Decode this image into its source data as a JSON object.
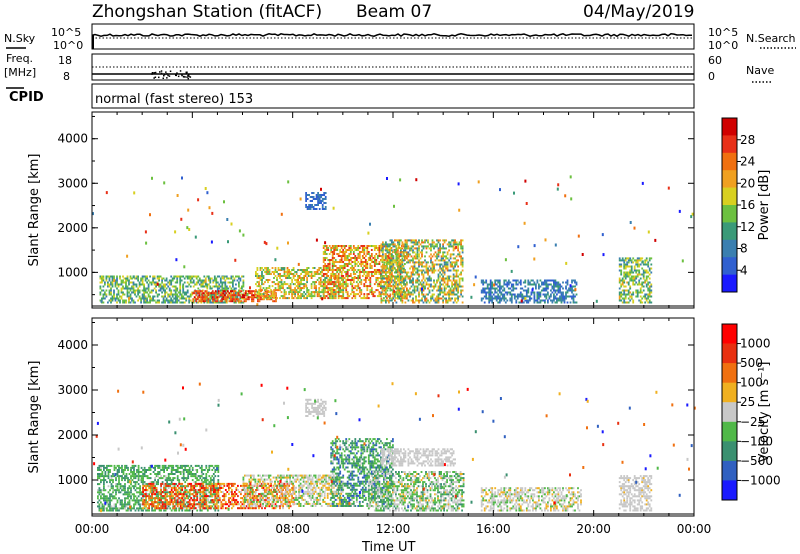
{
  "header": {
    "station": "Zhongshan Station (fitACF)",
    "beam": "Beam 07",
    "date": "04/May/2019"
  },
  "top_panels": {
    "nsky_label": "N.Sky",
    "nsearch_label": "N.Search",
    "nsky_ticks": [
      "10^5",
      "10^0"
    ],
    "freq_label": "Freq.",
    "freq_unit": "[MHz]",
    "freq_ticks": [
      "18",
      "8"
    ],
    "nave_label": "Nave",
    "nave_ticks": [
      "60",
      "0"
    ],
    "cpid_label": "CPID",
    "cpid_text": "normal (fast stereo) 153"
  },
  "chart_data": [
    {
      "type": "heatmap",
      "name": "power",
      "ylabel": "Slant Range [km]",
      "xlabel": "",
      "x_ticks": [
        "00:00",
        "04:00",
        "08:00",
        "12:00",
        "16:00",
        "20:00",
        "00:00"
      ],
      "y_ticks": [
        "1000",
        "2000",
        "3000",
        "4000"
      ],
      "ylim": [
        200,
        4600
      ],
      "xlim_hours": [
        0,
        24
      ],
      "colorbar": {
        "label": "Power [dB]",
        "ticks": [
          "28",
          "24",
          "20",
          "16",
          "12",
          "8",
          "4"
        ],
        "range": [
          0,
          32
        ],
        "colors": [
          "#1a1aff",
          "#3060d0",
          "#3a7fb0",
          "#3a9a78",
          "#6cc040",
          "#d8d020",
          "#f0a020",
          "#f07010",
          "#e83018",
          "#d00000"
        ]
      },
      "regions": [
        {
          "t0": 0.3,
          "t1": 6.0,
          "r0": 300,
          "r1": 900,
          "level": [
            8,
            18
          ]
        },
        {
          "t0": 4.0,
          "t1": 7.3,
          "r0": 330,
          "r1": 600,
          "level": [
            22,
            30
          ]
        },
        {
          "t0": 6.5,
          "t1": 10.0,
          "r0": 400,
          "r1": 1100,
          "level": [
            12,
            24
          ]
        },
        {
          "t0": 8.5,
          "t1": 9.3,
          "r0": 2400,
          "r1": 2800,
          "level": [
            4,
            8
          ]
        },
        {
          "t0": 9.2,
          "t1": 12.5,
          "r0": 400,
          "r1": 1600,
          "level": [
            14,
            28
          ]
        },
        {
          "t0": 11.5,
          "t1": 14.8,
          "r0": 300,
          "r1": 1700,
          "level": [
            8,
            24
          ]
        },
        {
          "t0": 15.5,
          "t1": 19.3,
          "r0": 300,
          "r1": 800,
          "level": [
            4,
            12
          ]
        },
        {
          "t0": 21.0,
          "t1": 22.3,
          "r0": 300,
          "r1": 1300,
          "level": [
            8,
            20
          ]
        }
      ]
    },
    {
      "type": "heatmap",
      "name": "velocity",
      "ylabel": "Slant Range [km]",
      "xlabel": "Time UT",
      "x_ticks": [
        "00:00",
        "04:00",
        "08:00",
        "12:00",
        "16:00",
        "20:00",
        "00:00"
      ],
      "y_ticks": [
        "1000",
        "2000",
        "3000",
        "4000"
      ],
      "ylim": [
        200,
        4600
      ],
      "xlim_hours": [
        0,
        24
      ],
      "colorbar": {
        "label": "Velocity [m s⁻¹]",
        "ticks": [
          "1000",
          "500",
          "100",
          "25",
          "-25",
          "-100",
          "-500",
          "-1000"
        ],
        "range": [
          -1200,
          1200
        ],
        "colors": [
          "#1a1aff",
          "#3060c0",
          "#3a9070",
          "#50b848",
          "#c8c8c8",
          "#f0b020",
          "#f07010",
          "#e83010",
          "#ff0000"
        ]
      },
      "regions": [
        {
          "t0": 0.2,
          "t1": 5.0,
          "r0": 300,
          "r1": 1300,
          "level": [
            -600,
            -100
          ]
        },
        {
          "t0": 2.0,
          "t1": 8.0,
          "r0": 350,
          "r1": 900,
          "level": [
            100,
            1100
          ]
        },
        {
          "t0": 6.0,
          "t1": 10.0,
          "r0": 400,
          "r1": 1100,
          "level": [
            -300,
            300
          ]
        },
        {
          "t0": 8.5,
          "t1": 9.3,
          "r0": 2400,
          "r1": 2800,
          "level": [
            -20,
            20
          ]
        },
        {
          "t0": 9.5,
          "t1": 12.0,
          "r0": 400,
          "r1": 1900,
          "level": [
            -800,
            -100
          ]
        },
        {
          "t0": 11.5,
          "t1": 14.5,
          "r0": 1300,
          "r1": 1700,
          "level": [
            -20,
            20
          ]
        },
        {
          "t0": 11.0,
          "t1": 14.8,
          "r0": 300,
          "r1": 1200,
          "level": [
            -500,
            200
          ]
        },
        {
          "t0": 15.5,
          "t1": 19.5,
          "r0": 300,
          "r1": 800,
          "level": [
            -200,
            200
          ]
        },
        {
          "t0": 21.0,
          "t1": 22.3,
          "r0": 300,
          "r1": 1100,
          "level": [
            -100,
            150
          ]
        }
      ]
    }
  ]
}
